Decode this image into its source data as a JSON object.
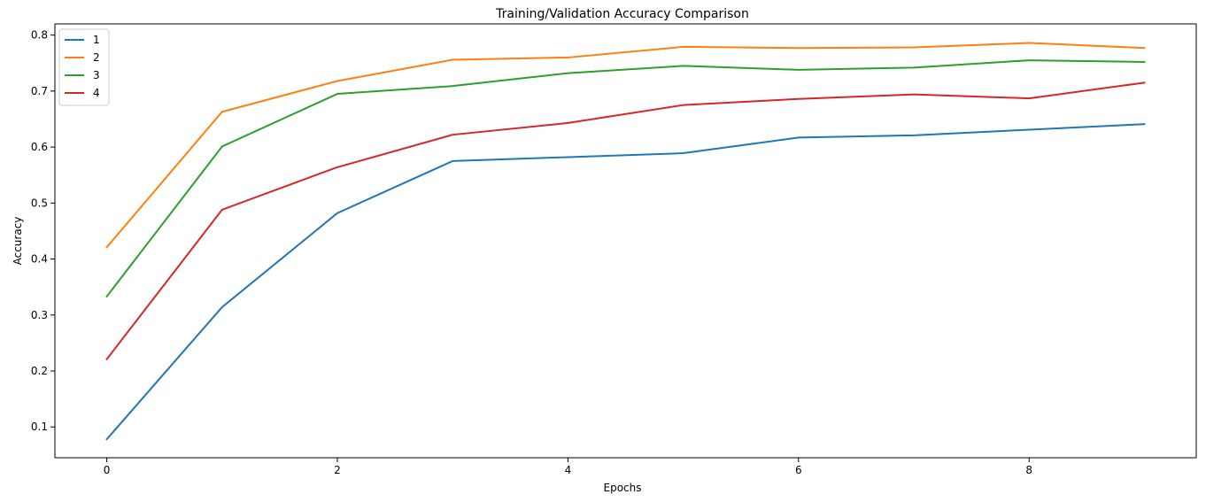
{
  "chart_data": {
    "type": "line",
    "title": "Training/Validation Accuracy Comparison",
    "xlabel": "Epochs",
    "ylabel": "Accuracy",
    "x": [
      0,
      1,
      2,
      3,
      4,
      5,
      6,
      7,
      8,
      9
    ],
    "xlim": [
      -0.45,
      9.45
    ],
    "ylim": [
      0.045,
      0.82
    ],
    "xticks": [
      0,
      2,
      4,
      6,
      8
    ],
    "yticks": [
      0.1,
      0.2,
      0.3,
      0.4,
      0.5,
      0.6,
      0.7,
      0.8
    ],
    "grid": false,
    "legend_position": "upper-left",
    "series": [
      {
        "name": "1",
        "color": "#1f77b4",
        "values": [
          0.078,
          0.314,
          0.482,
          0.575,
          0.582,
          0.589,
          0.617,
          0.621,
          0.631,
          0.641
        ]
      },
      {
        "name": "2",
        "color": "#ff7f0e",
        "values": [
          0.421,
          0.663,
          0.718,
          0.756,
          0.76,
          0.779,
          0.777,
          0.778,
          0.786,
          0.777
        ]
      },
      {
        "name": "3",
        "color": "#2ca02c",
        "values": [
          0.333,
          0.601,
          0.695,
          0.709,
          0.732,
          0.745,
          0.738,
          0.742,
          0.755,
          0.752
        ]
      },
      {
        "name": "4",
        "color": "#d62728",
        "values": [
          0.221,
          0.488,
          0.564,
          0.622,
          0.643,
          0.675,
          0.686,
          0.694,
          0.687,
          0.715
        ]
      }
    ]
  }
}
